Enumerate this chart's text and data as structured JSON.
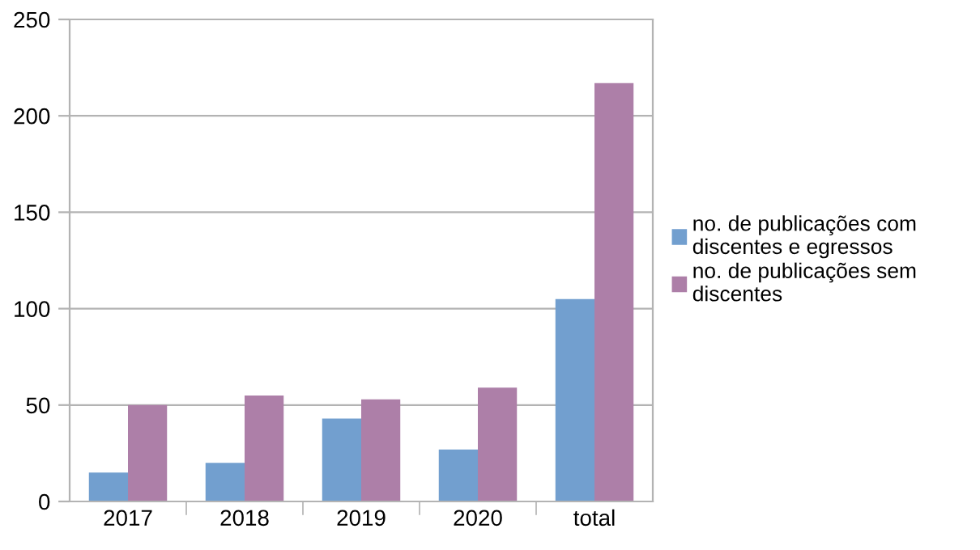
{
  "chart_data": {
    "type": "bar",
    "categories": [
      "2017",
      "2018",
      "2019",
      "2020",
      "total"
    ],
    "series": [
      {
        "name": "no. de publicações com\ndiscentes e egressos",
        "color": "#729fcf",
        "values": [
          15,
          20,
          43,
          27,
          105
        ]
      },
      {
        "name": "no. de publicações sem\ndiscentes",
        "color": "#ad7fa8",
        "values": [
          50,
          55,
          53,
          59,
          217
        ]
      }
    ],
    "ylim": [
      0,
      250
    ],
    "yticks": [
      0,
      50,
      100,
      150,
      200,
      250
    ],
    "grid": "y",
    "legend": "right"
  }
}
